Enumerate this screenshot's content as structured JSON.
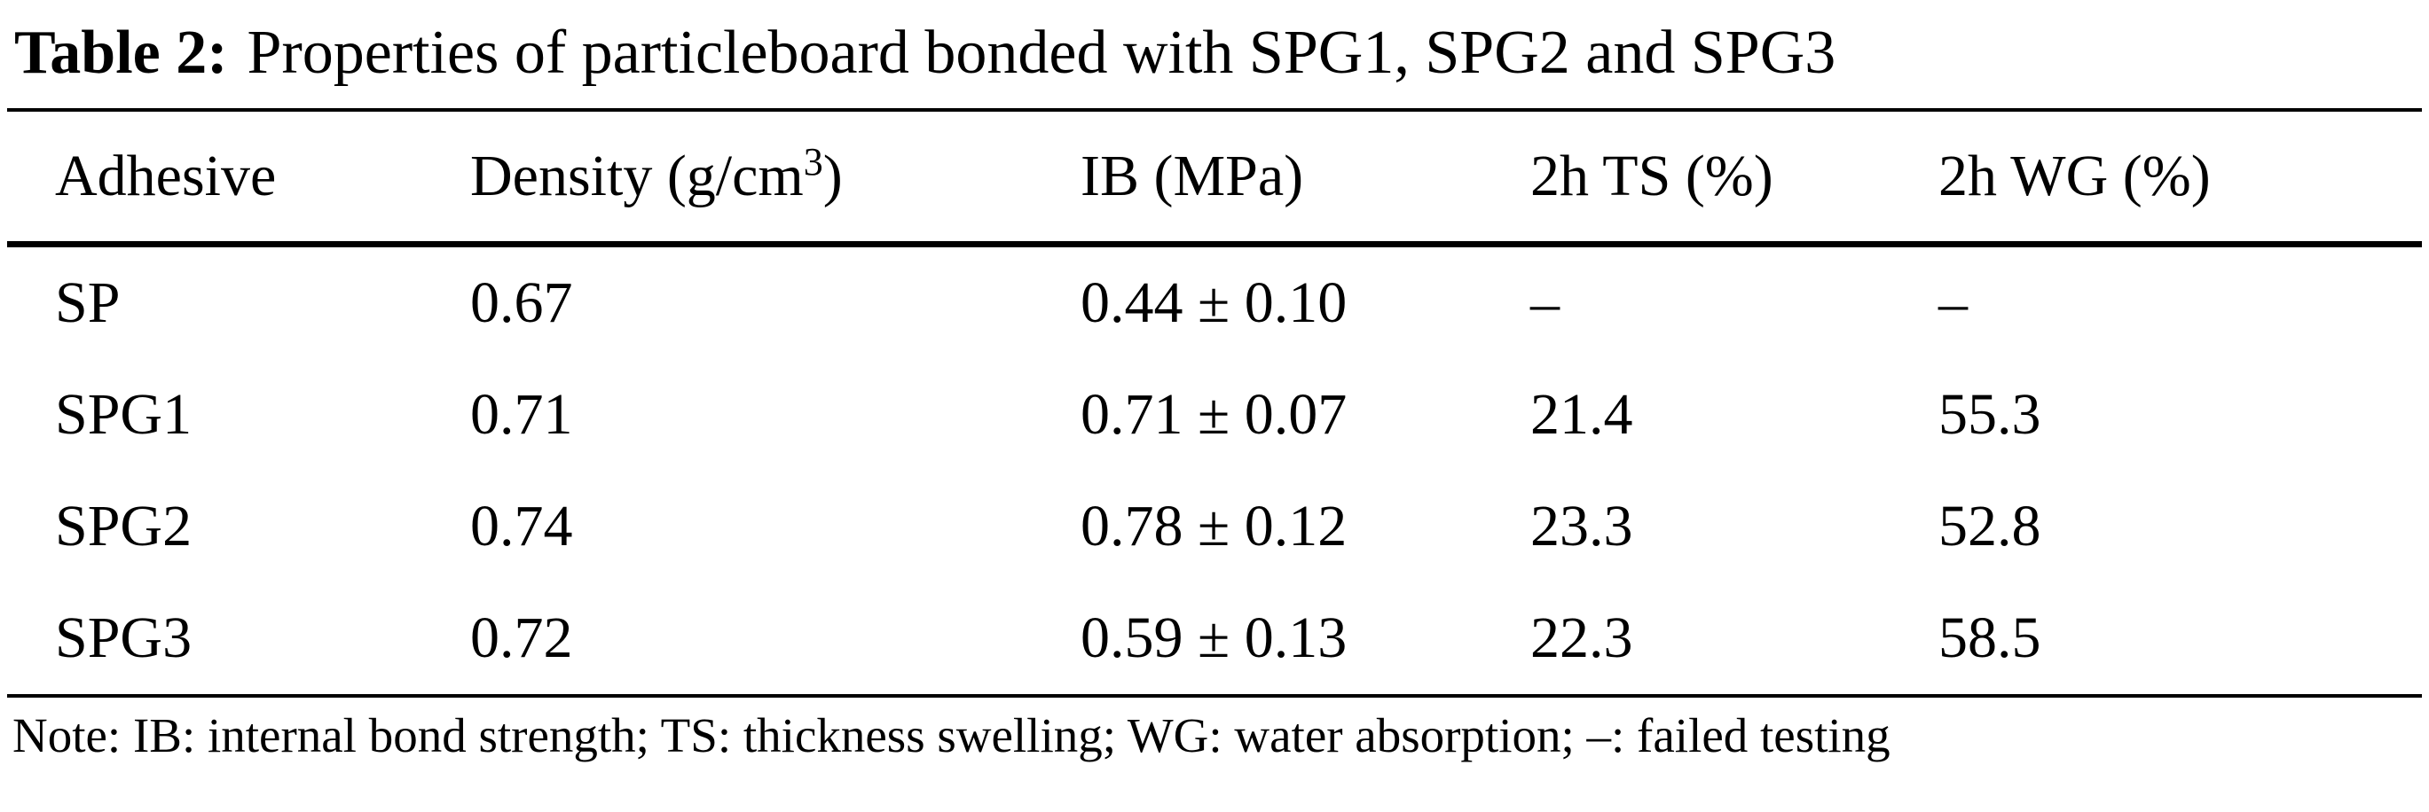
{
  "table": {
    "caption": {
      "label": "Table 2:",
      "text": "Properties of particleboard bonded with SPG1, SPG2 and SPG3"
    },
    "columns": {
      "adhesive": "Adhesive",
      "density_pre": "Density (g/cm",
      "density_sup": "3",
      "density_post": ")",
      "ib": "IB (MPa)",
      "ts": "2h TS (%)",
      "wg": "2h WG (%)"
    },
    "rows": [
      {
        "adhesive": "SP",
        "density": "0.67",
        "ib": "0.44 ± 0.10",
        "ts": "–",
        "wg": "–"
      },
      {
        "adhesive": "SPG1",
        "density": "0.71",
        "ib": "0.71 ± 0.07",
        "ts": "21.4",
        "wg": "55.3"
      },
      {
        "adhesive": "SPG2",
        "density": "0.74",
        "ib": "0.78 ± 0.12",
        "ts": "23.3",
        "wg": "52.8"
      },
      {
        "adhesive": "SPG3",
        "density": "0.72",
        "ib": "0.59 ± 0.13",
        "ts": "22.3",
        "wg": "58.5"
      }
    ],
    "note": "Note: IB: internal bond strength; TS: thickness swelling; WG: water absorption; –: failed testing"
  },
  "chart_data": {
    "type": "table",
    "title": "Table 2: Properties of particleboard bonded with SPG1, SPG2 and SPG3",
    "columns": [
      "Adhesive",
      "Density (g/cm3)",
      "IB (MPa)",
      "2h TS (%)",
      "2h WG (%)"
    ],
    "rows": [
      [
        "SP",
        0.67,
        "0.44 ± 0.10",
        null,
        null
      ],
      [
        "SPG1",
        0.71,
        "0.71 ± 0.07",
        21.4,
        55.3
      ],
      [
        "SPG2",
        0.74,
        "0.78 ± 0.12",
        23.3,
        52.8
      ],
      [
        "SPG3",
        0.72,
        "0.59 ± 0.13",
        22.3,
        58.5
      ]
    ],
    "note": "IB: internal bond strength; TS: thickness swelling; WG: water absorption; –: failed testing"
  }
}
